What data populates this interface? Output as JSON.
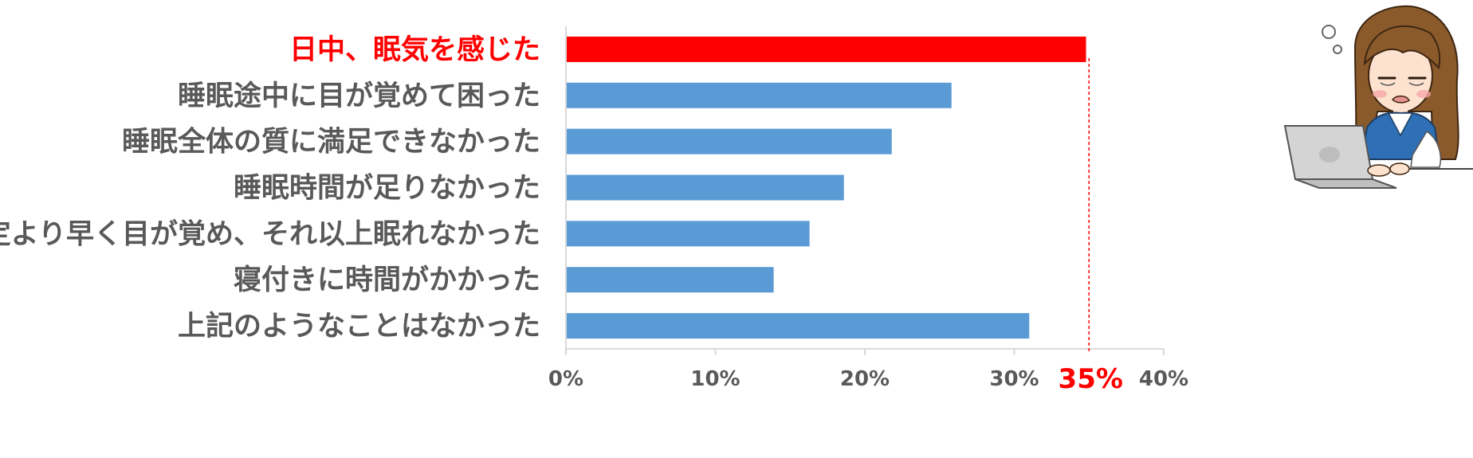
{
  "chart_data": {
    "type": "bar",
    "orientation": "horizontal",
    "categories": [
      "日中、眠気を感じた",
      "睡眠途中に目が覚めて困った",
      "睡眠全体の質に満足できなかった",
      "睡眠時間が足りなかった",
      "予定より早く目が覚め、それ以上眠れなかった",
      "寝付きに時間がかかった",
      "上記のようなことはなかった"
    ],
    "values": [
      34.8,
      25.8,
      21.8,
      18.6,
      16.3,
      13.9,
      31.0
    ],
    "highlight_index": 0,
    "xlim": [
      0,
      40
    ],
    "xticks": [
      0,
      10,
      20,
      30,
      40
    ],
    "xtick_labels": [
      "0%",
      "10%",
      "20%",
      "30%",
      "40%"
    ],
    "reference_line": {
      "value": 35,
      "label": "35%"
    },
    "title": "",
    "xlabel": "",
    "ylabel": "",
    "grid": false,
    "legend": "none"
  },
  "colors": {
    "bar": "#5b9bd5",
    "highlight_bar": "#ff0000",
    "label": "#595959",
    "highlight_label": "#ff0000",
    "axis": "#d9d9d9",
    "reference_line": "#ff0000"
  },
  "illustration": {
    "icon": "tired-woman-at-laptop"
  }
}
